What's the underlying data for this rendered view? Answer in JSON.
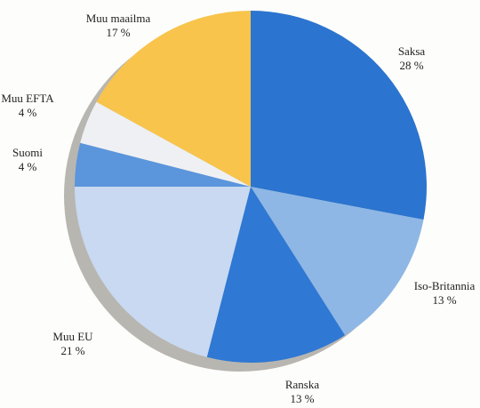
{
  "chart_data": {
    "type": "pie",
    "title": "",
    "unit": "%",
    "slices": [
      {
        "label": "Saksa",
        "value": 28,
        "value_label": "28 %",
        "color": "#2b74cf"
      },
      {
        "label": "Iso-Britannia",
        "value": 13,
        "value_label": "13 %",
        "color": "#8eb7e5"
      },
      {
        "label": "Ranska",
        "value": 13,
        "value_label": "13 %",
        "color": "#2f78d4"
      },
      {
        "label": "Muu EU",
        "value": 21,
        "value_label": "21 %",
        "color": "#c8d9f1"
      },
      {
        "label": "Suomi",
        "value": 4,
        "value_label": "4 %",
        "color": "#5b95dc"
      },
      {
        "label": "Muu EFTA",
        "value": 4,
        "value_label": "4 %",
        "color": "#eef0f3"
      },
      {
        "label": "Muu maailma",
        "value": 17,
        "value_label": "17 %",
        "color": "#f8c44c"
      }
    ],
    "shadow_color": "#b8b6b0"
  }
}
